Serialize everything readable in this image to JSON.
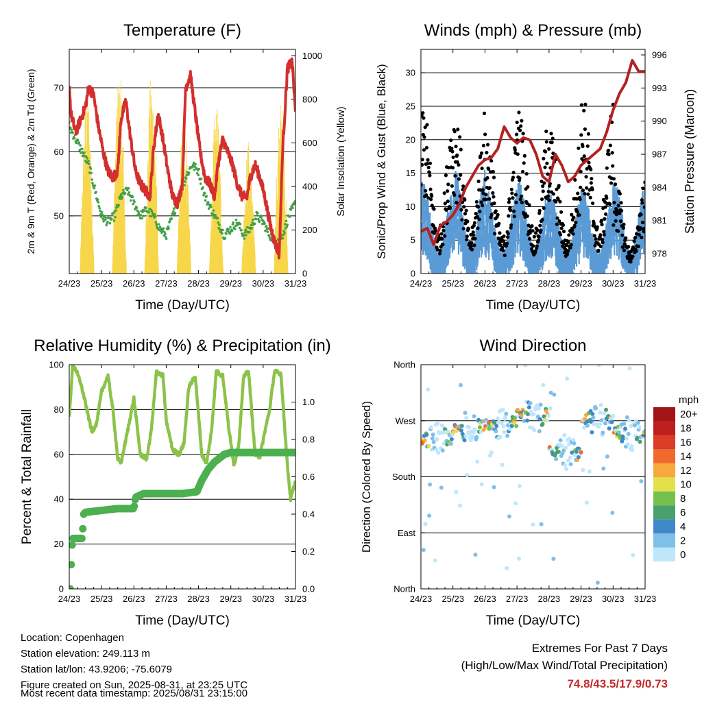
{
  "chart_data": [
    {
      "id": "temp",
      "type": "line",
      "title": "Temperature (F)",
      "xlabel": "Time (Day/UTC)",
      "ylabel": "2m & 9m T (Red, Orange) & 2m Td (Green)",
      "y2label": "Solar Insolation (Yellow)",
      "x_ticks": [
        "24/23",
        "25/23",
        "26/23",
        "27/23",
        "28/23",
        "29/23",
        "30/23",
        "31/23"
      ],
      "y_ticks": [
        50,
        60,
        70
      ],
      "ylim": [
        41,
        76
      ],
      "y2_ticks": [
        0,
        200,
        400,
        600,
        800,
        1000
      ],
      "y2lim": [
        0,
        1030
      ],
      "gridlines": [
        50,
        60,
        70
      ],
      "series": [
        {
          "key": "t2m",
          "color": "#d32f2f",
          "days": [
            0,
            0.05,
            0.2,
            0.35,
            0.5,
            0.6,
            0.75,
            0.9,
            1.05,
            1.2,
            1.35,
            1.5,
            1.6,
            1.75,
            1.9,
            2.05,
            2.2,
            2.35,
            2.5,
            2.6,
            2.75,
            2.9,
            3.05,
            3.2,
            3.35,
            3.5,
            3.6,
            3.75,
            3.9,
            4.05,
            4.2,
            4.35,
            4.5,
            4.6,
            4.75,
            4.9,
            5.05,
            5.2,
            5.35,
            5.5,
            5.6,
            5.75,
            5.9,
            6.05,
            6.2,
            6.35,
            6.5,
            6.6,
            6.75,
            6.9,
            7.0
          ],
          "values": [
            71,
            66,
            63,
            65,
            67,
            70,
            69,
            64,
            60,
            57,
            56,
            57,
            65,
            68,
            62,
            57,
            55,
            54,
            53,
            60,
            66,
            62,
            57,
            53,
            52,
            55,
            70,
            72,
            66,
            60,
            56,
            55,
            53,
            58,
            62,
            60,
            58,
            55,
            53,
            53,
            56,
            58,
            56,
            53,
            49,
            46,
            44,
            60,
            73,
            74,
            66
          ]
        },
        {
          "key": "td2m",
          "color": "#43a047",
          "days": [
            0,
            0.2,
            0.4,
            0.6,
            0.8,
            1.0,
            1.2,
            1.4,
            1.6,
            1.8,
            2.0,
            2.2,
            2.4,
            2.6,
            2.8,
            3.0,
            3.2,
            3.4,
            3.6,
            3.8,
            4.0,
            4.2,
            4.4,
            4.6,
            4.8,
            5.0,
            5.2,
            5.4,
            5.6,
            5.8,
            6.0,
            6.2,
            6.4,
            6.6,
            6.8,
            7.0
          ],
          "values": [
            64,
            62,
            60,
            58,
            54,
            50,
            49,
            50,
            53,
            54,
            52,
            50,
            51,
            50,
            48,
            47,
            50,
            53,
            56,
            58,
            57,
            53,
            51,
            49,
            47,
            48,
            49,
            47,
            48,
            50,
            49,
            47,
            46,
            47,
            50,
            52
          ]
        }
      ],
      "insolation": {
        "color": "#f7d64a",
        "day_peaks": [
          {
            "day": 0.55,
            "value": 880
          },
          {
            "day": 1.55,
            "value": 950
          },
          {
            "day": 2.55,
            "value": 930
          },
          {
            "day": 3.55,
            "value": 760
          },
          {
            "day": 4.55,
            "value": 780
          },
          {
            "day": 5.55,
            "value": 620
          },
          {
            "day": 6.55,
            "value": 800
          }
        ]
      }
    },
    {
      "id": "winds",
      "type": "scatter",
      "title": "Winds (mph) & Pressure (mb)",
      "xlabel": "Time (Day/UTC)",
      "ylabel": "Sonic/Prop Wind & Gust (Blue, Black)",
      "y2label": "Station Pressure (Maroon)",
      "x_ticks": [
        "24/23",
        "25/23",
        "26/23",
        "27/23",
        "28/23",
        "29/23",
        "30/23",
        "31/23"
      ],
      "y_ticks": [
        0,
        5,
        10,
        15,
        20,
        25,
        30
      ],
      "ylim": [
        0,
        33.5
      ],
      "y2_ticks": [
        978,
        981,
        984,
        987,
        990,
        993,
        996
      ],
      "y2lim": [
        976.2,
        996.5
      ],
      "gridlines": [
        5,
        10,
        15,
        20,
        25,
        30
      ],
      "wind_color": "#5b9bd5",
      "gust_color": "#000000",
      "wind_daily_peak": [
        14,
        16,
        13,
        14,
        12,
        13,
        14
      ],
      "gust_daily_peak": [
        25,
        24,
        21,
        24,
        21,
        26,
        14
      ],
      "pressure": {
        "color": "#b22222",
        "days": [
          0,
          0.2,
          0.4,
          0.6,
          0.8,
          1.0,
          1.2,
          1.4,
          1.6,
          1.8,
          2.0,
          2.2,
          2.4,
          2.6,
          2.8,
          3.0,
          3.2,
          3.4,
          3.6,
          3.8,
          4.0,
          4.2,
          4.4,
          4.6,
          4.8,
          5.0,
          5.2,
          5.4,
          5.6,
          5.8,
          6.0,
          6.2,
          6.4,
          6.6,
          6.8,
          7.0
        ],
        "values": [
          980,
          980.3,
          978.8,
          980.5,
          980.9,
          981.5,
          982.5,
          984,
          985,
          986,
          986.5,
          986.7,
          987.5,
          989.5,
          988.5,
          988,
          988.5,
          988.3,
          987,
          985,
          984.5,
          987,
          986,
          984.5,
          985,
          986,
          986.5,
          987,
          987.5,
          989,
          991,
          992.5,
          993.5,
          995.5,
          994.5,
          994.5
        ]
      }
    },
    {
      "id": "rh",
      "type": "line",
      "title": "Relative Humidity (%) & Precipitation (in)",
      "xlabel": "Time (Day/UTC)",
      "ylabel": "Percent & Total Rainfall",
      "x_ticks": [
        "24/23",
        "25/23",
        "26/23",
        "27/23",
        "28/23",
        "29/23",
        "30/23",
        "31/23"
      ],
      "y_ticks": [
        0,
        20,
        40,
        60,
        80,
        100
      ],
      "ylim": [
        0,
        100
      ],
      "y2_ticks": [
        "0.0",
        "0.2",
        "0.4",
        "0.6",
        "0.8",
        "1.0"
      ],
      "y2lim": [
        0,
        1.2
      ],
      "gridlines": [
        20,
        40,
        60,
        80
      ],
      "rh": {
        "color": "#8bc34a",
        "days": [
          0,
          0.1,
          0.2,
          0.35,
          0.5,
          0.7,
          0.85,
          1.0,
          1.2,
          1.35,
          1.5,
          1.6,
          1.8,
          2.0,
          2.2,
          2.4,
          2.55,
          2.7,
          2.9,
          3.0,
          3.2,
          3.4,
          3.55,
          3.7,
          3.9,
          4.1,
          4.25,
          4.4,
          4.55,
          4.75,
          4.95,
          5.1,
          5.25,
          5.4,
          5.55,
          5.75,
          5.9,
          6.05,
          6.2,
          6.35,
          6.55,
          6.75,
          6.85,
          7.0
        ],
        "values": [
          76,
          99,
          98,
          92,
          83,
          70,
          74,
          88,
          95,
          80,
          58,
          56,
          70,
          85,
          60,
          58,
          72,
          97,
          95,
          75,
          62,
          60,
          65,
          90,
          95,
          60,
          56,
          70,
          97,
          95,
          70,
          55,
          65,
          95,
          97,
          60,
          59,
          70,
          80,
          97,
          96,
          55,
          40,
          48
        ]
      },
      "precip": {
        "color": "#4caf50",
        "days": [
          0,
          0.03,
          0.06,
          0.1,
          0.4,
          0.45,
          0.5,
          1.0,
          1.5,
          1.8,
          2.0,
          2.05,
          2.3,
          2.5,
          3.0,
          3.5,
          3.95,
          4.1,
          4.3,
          4.5,
          4.8,
          5.0,
          5.5,
          6.0,
          6.5,
          7.0
        ],
        "values": [
          0,
          0,
          0.13,
          0.27,
          0.27,
          0.4,
          0.41,
          0.42,
          0.43,
          0.43,
          0.43,
          0.49,
          0.51,
          0.51,
          0.51,
          0.51,
          0.52,
          0.58,
          0.64,
          0.68,
          0.72,
          0.73,
          0.73,
          0.73,
          0.73,
          0.73
        ]
      }
    },
    {
      "id": "wdir",
      "type": "scatter",
      "title": "Wind Direction",
      "xlabel": "Time (Day/UTC)",
      "ylabel": "Direction (Colored By Speed)",
      "x_ticks": [
        "24/23",
        "25/23",
        "26/23",
        "27/23",
        "28/23",
        "29/23",
        "30/23",
        "31/23"
      ],
      "y_ticks": [
        "North",
        "East",
        "South",
        "West",
        "North"
      ],
      "ylim": [
        0,
        360
      ],
      "gridlines": [
        90,
        180,
        270
      ],
      "daily_mean_dir": [
        240,
        260,
        265,
        280,
        220,
        270,
        250
      ],
      "colorbar": {
        "title": "mph",
        "labels": [
          "0",
          "2",
          "4",
          "6",
          "8",
          "10",
          "12",
          "14",
          "16",
          "18",
          "20+"
        ],
        "colors": [
          "#bfe6fb",
          "#7ec0ea",
          "#3f88c9",
          "#4aa06c",
          "#77bf4d",
          "#e4e04a",
          "#f7a93c",
          "#ef6a2c",
          "#dc3b25",
          "#bf1e1e",
          "#a31515"
        ]
      }
    }
  ],
  "footer": {
    "location": "Location: Copenhagen",
    "elevation": "Station elevation: 249.113 m",
    "latlon": "Station lat/lon: 43.9206; -75.6079",
    "created": "Figure created on Sun, 2025-08-31, at 23:25 UTC",
    "recent": "Most recent data timestamp: 2025/08/31 23:15:00"
  },
  "extremes": {
    "heading": "Extremes For Past 7 Days",
    "subheading": "(High/Low/Max Wind/Total Precipitation)",
    "values": "74.8/43.5/17.9/0.73"
  }
}
